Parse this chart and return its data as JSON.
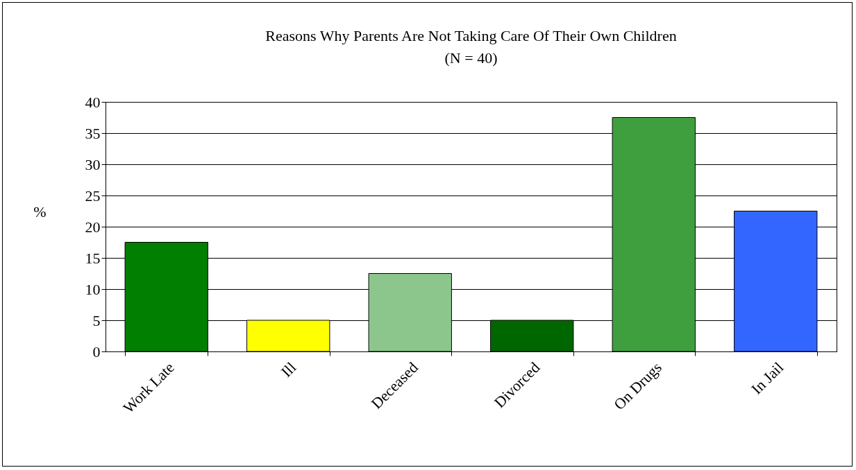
{
  "chart_data": {
    "type": "bar",
    "title": "Reasons Why Parents Are Not Taking Care Of Their Own Children",
    "subtitle": "(N = 40)",
    "ylabel": "%",
    "categories": [
      "Work Late",
      "Ill",
      "Deceased",
      "Divorced",
      "On Drugs",
      "In Jail"
    ],
    "values": [
      17.5,
      5,
      12.5,
      5,
      37.5,
      22.5
    ],
    "colors": [
      "#007f00",
      "#ffff00",
      "#8cc68c",
      "#006600",
      "#3f9f3f",
      "#3366ff"
    ],
    "ylim": [
      0,
      40
    ],
    "yticks": [
      0,
      5,
      10,
      15,
      20,
      25,
      30,
      35,
      40
    ],
    "grid": "y",
    "legend": false
  }
}
